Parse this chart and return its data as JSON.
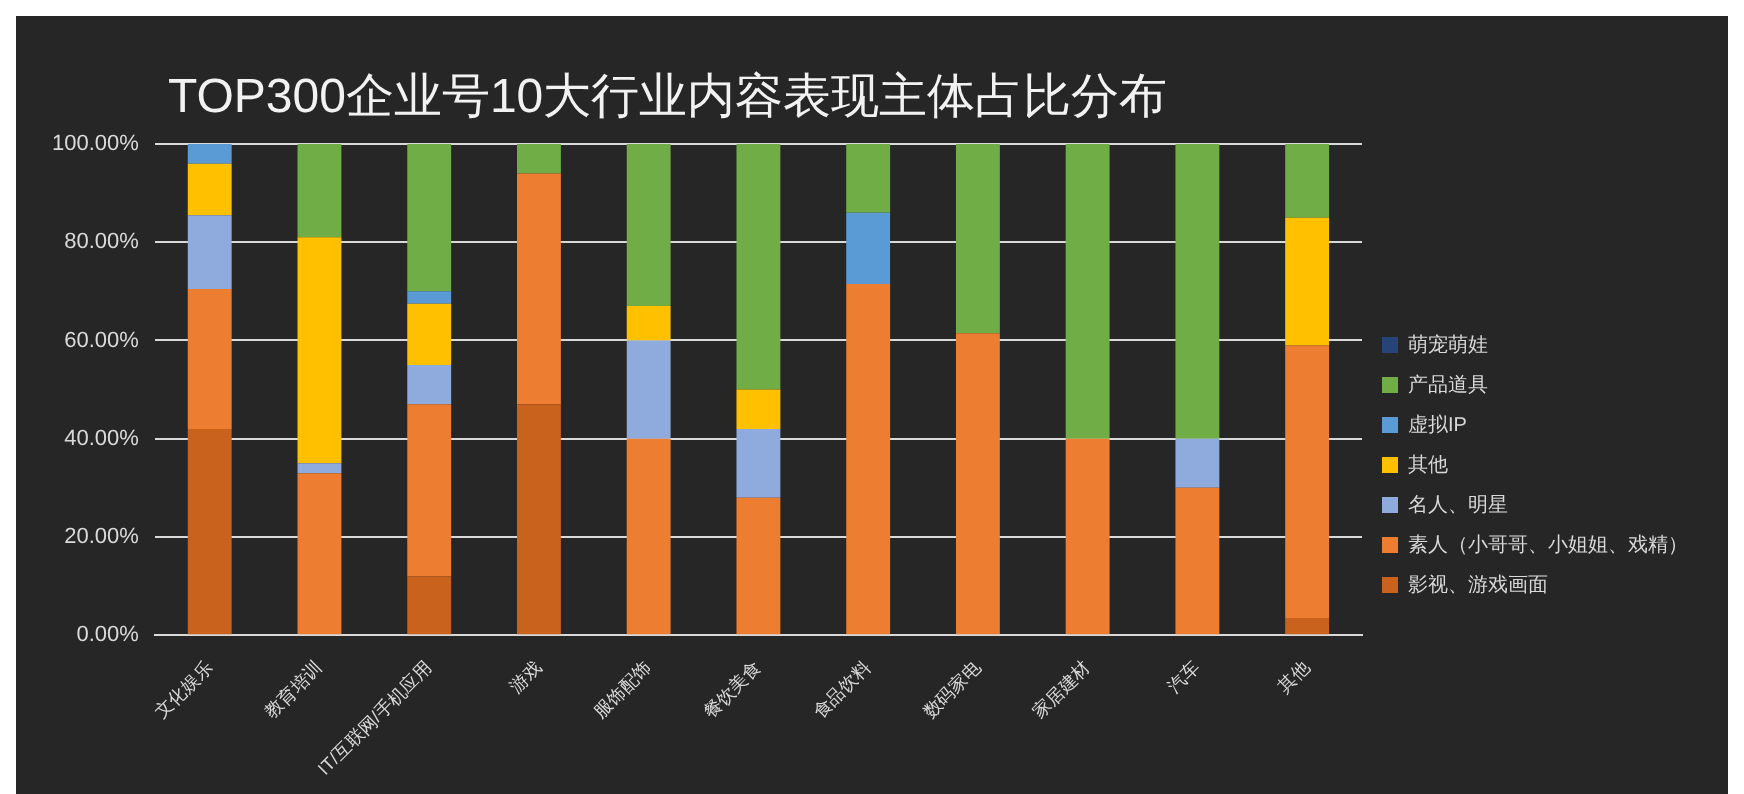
{
  "chart_data": {
    "type": "bar",
    "stacked": true,
    "title": "TOP300企业号10大行业内容表现主体占比分布",
    "categories": [
      "文化娱乐",
      "教育培训",
      "IT/互联网/手机应用",
      "游戏",
      "服饰配饰",
      "餐饮美食",
      "食品饮料",
      "数码家电",
      "家居建材",
      "汽车",
      "其他"
    ],
    "series": [
      {
        "name": "影视、游戏画面",
        "color": "#c9621c",
        "values": [
          42,
          0,
          12,
          47,
          0,
          0,
          0,
          0,
          0,
          0,
          3.5
        ]
      },
      {
        "name": "素人（小哥哥、小姐姐、戏精）",
        "color": "#ed7d31",
        "values": [
          28.5,
          33,
          35,
          47,
          40,
          28,
          71.5,
          61.5,
          40,
          30,
          55.5
        ]
      },
      {
        "name": "名人、明星",
        "color": "#8faadc",
        "values": [
          15,
          2,
          8,
          0,
          20,
          14,
          0,
          0,
          0,
          10,
          0
        ]
      },
      {
        "name": "其他",
        "color": "#ffc000",
        "values": [
          10.5,
          46,
          12.5,
          0,
          7,
          8,
          0,
          0,
          0,
          0,
          26
        ]
      },
      {
        "name": "虚拟IP",
        "color": "#5b9bd5",
        "values": [
          4,
          0,
          2.5,
          0,
          0,
          0,
          14.5,
          0,
          0,
          0,
          0
        ]
      },
      {
        "name": "产品道具",
        "color": "#70ad47",
        "values": [
          0,
          19,
          30,
          6,
          33,
          50,
          14,
          38.5,
          60,
          60,
          15
        ]
      },
      {
        "name": "萌宠萌娃",
        "color": "#264478",
        "values": [
          0,
          0,
          0,
          0,
          0,
          0,
          0,
          0,
          0,
          0,
          0
        ]
      }
    ],
    "ylim": [
      0,
      100
    ],
    "yticks": [
      {
        "value": 0,
        "label": "0.00%"
      },
      {
        "value": 20,
        "label": "20.00%"
      },
      {
        "value": 40,
        "label": "40.00%"
      },
      {
        "value": 60,
        "label": "60.00%"
      },
      {
        "value": 80,
        "label": "80.00%"
      },
      {
        "value": 100,
        "label": "100.00%"
      }
    ],
    "grid": "y",
    "legend": "right"
  }
}
